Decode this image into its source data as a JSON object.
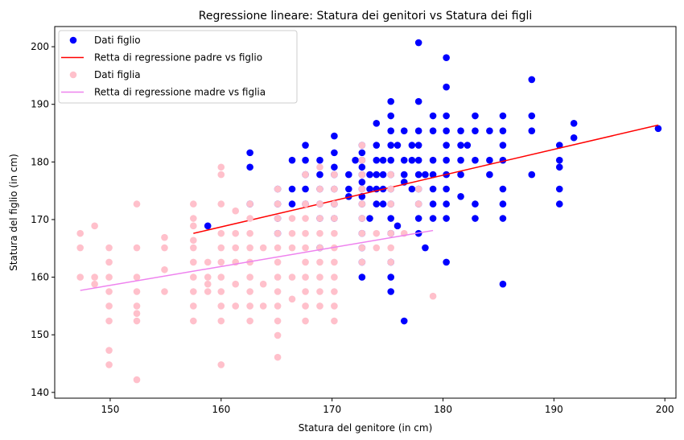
{
  "chart_data": {
    "type": "scatter",
    "title": "Regressione lineare: Statura dei genitori vs Statura dei figli",
    "xlabel": "Statura del genitore (in cm)",
    "ylabel": "Statura del figlio (in cm)",
    "xlim": [
      145,
      201
    ],
    "ylim": [
      139,
      203.5
    ],
    "xticks": [
      150,
      160,
      170,
      180,
      190,
      200
    ],
    "yticks": [
      140,
      150,
      160,
      170,
      180,
      190,
      200
    ],
    "grid": false,
    "legend_position": "top-left",
    "series": [
      {
        "name": "Dati figlio",
        "kind": "scatter",
        "color": "#0000ff",
        "points": [
          [
            158.8,
            168.9
          ],
          [
            162.6,
            181.6
          ],
          [
            162.6,
            179.1
          ],
          [
            162.6,
            172.7
          ],
          [
            165.1,
            175.3
          ],
          [
            165.1,
            172.7
          ],
          [
            165.1,
            170.2
          ],
          [
            165.1,
            167.6
          ],
          [
            166.4,
            180.3
          ],
          [
            166.4,
            175.3
          ],
          [
            166.4,
            172.7
          ],
          [
            167.6,
            182.9
          ],
          [
            167.6,
            180.3
          ],
          [
            167.6,
            177.8
          ],
          [
            167.6,
            175.3
          ],
          [
            167.6,
            172.7
          ],
          [
            168.9,
            180.3
          ],
          [
            168.9,
            177.8
          ],
          [
            168.9,
            175.3
          ],
          [
            168.9,
            172.7
          ],
          [
            168.9,
            170.2
          ],
          [
            168.9,
            165.1
          ],
          [
            170.2,
            184.5
          ],
          [
            170.2,
            181.6
          ],
          [
            170.2,
            179.1
          ],
          [
            170.2,
            177.8
          ],
          [
            170.2,
            175.3
          ],
          [
            170.2,
            172.7
          ],
          [
            170.2,
            170.2
          ],
          [
            171.5,
            177.8
          ],
          [
            171.5,
            175.3
          ],
          [
            171.5,
            174.0
          ],
          [
            172.1,
            180.3
          ],
          [
            172.7,
            182.9
          ],
          [
            172.7,
            181.6
          ],
          [
            172.7,
            180.3
          ],
          [
            172.7,
            179.1
          ],
          [
            172.7,
            177.8
          ],
          [
            172.7,
            176.5
          ],
          [
            172.7,
            175.3
          ],
          [
            172.7,
            174.0
          ],
          [
            172.7,
            172.7
          ],
          [
            172.7,
            170.2
          ],
          [
            172.7,
            167.6
          ],
          [
            172.7,
            165.1
          ],
          [
            172.7,
            162.6
          ],
          [
            172.7,
            160.0
          ],
          [
            173.4,
            177.8
          ],
          [
            173.4,
            175.3
          ],
          [
            173.4,
            170.2
          ],
          [
            174.0,
            186.7
          ],
          [
            174.0,
            182.9
          ],
          [
            174.0,
            180.3
          ],
          [
            174.0,
            177.8
          ],
          [
            174.0,
            175.3
          ],
          [
            174.0,
            172.7
          ],
          [
            174.6,
            180.3
          ],
          [
            174.6,
            177.8
          ],
          [
            174.6,
            175.3
          ],
          [
            174.6,
            172.7
          ],
          [
            175.3,
            190.5
          ],
          [
            175.3,
            188.0
          ],
          [
            175.3,
            185.4
          ],
          [
            175.3,
            182.9
          ],
          [
            175.3,
            180.3
          ],
          [
            175.3,
            177.8
          ],
          [
            175.3,
            175.3
          ],
          [
            175.3,
            172.7
          ],
          [
            175.3,
            170.2
          ],
          [
            175.3,
            167.6
          ],
          [
            175.3,
            162.6
          ],
          [
            175.3,
            160.0
          ],
          [
            175.3,
            157.5
          ],
          [
            175.9,
            182.9
          ],
          [
            175.9,
            168.9
          ],
          [
            176.5,
            185.4
          ],
          [
            176.5,
            180.3
          ],
          [
            176.5,
            177.8
          ],
          [
            176.5,
            176.5
          ],
          [
            176.5,
            152.4
          ],
          [
            177.2,
            182.9
          ],
          [
            177.2,
            180.3
          ],
          [
            177.2,
            175.3
          ],
          [
            177.8,
            200.7
          ],
          [
            177.8,
            190.5
          ],
          [
            177.8,
            185.4
          ],
          [
            177.8,
            182.9
          ],
          [
            177.8,
            180.3
          ],
          [
            177.8,
            177.8
          ],
          [
            177.8,
            175.3
          ],
          [
            177.8,
            172.7
          ],
          [
            177.8,
            170.2
          ],
          [
            177.8,
            167.6
          ],
          [
            178.4,
            177.8
          ],
          [
            178.4,
            165.1
          ],
          [
            179.1,
            188.0
          ],
          [
            179.1,
            185.4
          ],
          [
            179.1,
            180.3
          ],
          [
            179.1,
            177.8
          ],
          [
            179.1,
            175.3
          ],
          [
            179.1,
            172.7
          ],
          [
            179.1,
            170.2
          ],
          [
            180.3,
            198.1
          ],
          [
            180.3,
            193.0
          ],
          [
            180.3,
            188.0
          ],
          [
            180.3,
            185.4
          ],
          [
            180.3,
            182.9
          ],
          [
            180.3,
            180.3
          ],
          [
            180.3,
            177.8
          ],
          [
            180.3,
            175.3
          ],
          [
            180.3,
            172.7
          ],
          [
            180.3,
            170.2
          ],
          [
            180.3,
            162.6
          ],
          [
            181.6,
            185.4
          ],
          [
            181.6,
            182.9
          ],
          [
            181.6,
            180.3
          ],
          [
            181.6,
            177.8
          ],
          [
            181.6,
            174.0
          ],
          [
            182.2,
            182.9
          ],
          [
            182.9,
            188.0
          ],
          [
            182.9,
            185.4
          ],
          [
            182.9,
            180.3
          ],
          [
            182.9,
            172.7
          ],
          [
            182.9,
            170.2
          ],
          [
            184.2,
            185.4
          ],
          [
            184.2,
            180.3
          ],
          [
            184.2,
            177.8
          ],
          [
            185.4,
            188.0
          ],
          [
            185.4,
            185.4
          ],
          [
            185.4,
            182.9
          ],
          [
            185.4,
            180.3
          ],
          [
            185.4,
            175.3
          ],
          [
            185.4,
            172.7
          ],
          [
            185.4,
            170.2
          ],
          [
            185.4,
            158.8
          ],
          [
            188.0,
            194.3
          ],
          [
            188.0,
            188.0
          ],
          [
            188.0,
            185.4
          ],
          [
            188.0,
            177.8
          ],
          [
            190.5,
            182.9
          ],
          [
            190.5,
            180.3
          ],
          [
            190.5,
            179.1
          ],
          [
            190.5,
            175.3
          ],
          [
            190.5,
            172.7
          ],
          [
            191.8,
            186.7
          ],
          [
            191.8,
            184.2
          ],
          [
            199.4,
            185.8
          ]
        ]
      },
      {
        "name": "Retta di regressione padre vs figlio",
        "kind": "line",
        "color": "#ff0000",
        "x": [
          157.5,
          199.4
        ],
        "y": [
          167.6,
          186.4
        ]
      },
      {
        "name": "Dati figlia",
        "kind": "scatter",
        "color": "#ffc0cb",
        "points": [
          [
            147.3,
            167.6
          ],
          [
            147.3,
            165.1
          ],
          [
            147.3,
            160.0
          ],
          [
            148.6,
            168.9
          ],
          [
            148.6,
            160.0
          ],
          [
            148.6,
            158.8
          ],
          [
            149.9,
            165.1
          ],
          [
            149.9,
            162.6
          ],
          [
            149.9,
            160.0
          ],
          [
            149.9,
            157.5
          ],
          [
            149.9,
            155.0
          ],
          [
            149.9,
            152.4
          ],
          [
            149.9,
            147.3
          ],
          [
            149.9,
            144.8
          ],
          [
            152.4,
            172.7
          ],
          [
            152.4,
            165.1
          ],
          [
            152.4,
            160.0
          ],
          [
            152.4,
            157.5
          ],
          [
            152.4,
            155.0
          ],
          [
            152.4,
            153.7
          ],
          [
            152.4,
            152.4
          ],
          [
            152.4,
            142.2
          ],
          [
            154.9,
            166.9
          ],
          [
            154.9,
            165.1
          ],
          [
            154.9,
            161.3
          ],
          [
            154.9,
            157.5
          ],
          [
            157.5,
            172.7
          ],
          [
            157.5,
            170.2
          ],
          [
            157.5,
            168.9
          ],
          [
            157.5,
            166.4
          ],
          [
            157.5,
            165.1
          ],
          [
            157.5,
            162.6
          ],
          [
            157.5,
            160.0
          ],
          [
            157.5,
            157.5
          ],
          [
            157.5,
            155.0
          ],
          [
            157.5,
            152.4
          ],
          [
            158.8,
            162.6
          ],
          [
            158.8,
            160.0
          ],
          [
            158.8,
            158.8
          ],
          [
            158.8,
            157.5
          ],
          [
            160.0,
            179.1
          ],
          [
            160.0,
            177.8
          ],
          [
            160.0,
            172.7
          ],
          [
            160.0,
            167.6
          ],
          [
            160.0,
            165.1
          ],
          [
            160.0,
            162.6
          ],
          [
            160.0,
            160.0
          ],
          [
            160.0,
            157.5
          ],
          [
            160.0,
            155.0
          ],
          [
            160.0,
            152.4
          ],
          [
            160.0,
            144.8
          ],
          [
            161.3,
            171.5
          ],
          [
            161.3,
            167.6
          ],
          [
            161.3,
            165.1
          ],
          [
            161.3,
            162.6
          ],
          [
            161.3,
            158.8
          ],
          [
            161.3,
            155.0
          ],
          [
            162.6,
            172.7
          ],
          [
            162.6,
            170.2
          ],
          [
            162.6,
            167.6
          ],
          [
            162.6,
            165.1
          ],
          [
            162.6,
            162.6
          ],
          [
            162.6,
            160.0
          ],
          [
            162.6,
            157.5
          ],
          [
            162.6,
            155.0
          ],
          [
            162.6,
            152.4
          ],
          [
            163.8,
            165.1
          ],
          [
            163.8,
            158.8
          ],
          [
            163.8,
            155.0
          ],
          [
            165.1,
            175.3
          ],
          [
            165.1,
            172.7
          ],
          [
            165.1,
            170.2
          ],
          [
            165.1,
            167.6
          ],
          [
            165.1,
            165.1
          ],
          [
            165.1,
            162.6
          ],
          [
            165.1,
            160.0
          ],
          [
            165.1,
            157.5
          ],
          [
            165.1,
            155.0
          ],
          [
            165.1,
            152.4
          ],
          [
            165.1,
            149.9
          ],
          [
            165.1,
            146.1
          ],
          [
            166.4,
            170.2
          ],
          [
            166.4,
            167.6
          ],
          [
            166.4,
            165.1
          ],
          [
            166.4,
            160.0
          ],
          [
            166.4,
            156.2
          ],
          [
            167.6,
            177.8
          ],
          [
            167.6,
            172.7
          ],
          [
            167.6,
            170.2
          ],
          [
            167.6,
            167.6
          ],
          [
            167.6,
            165.1
          ],
          [
            167.6,
            162.6
          ],
          [
            167.6,
            160.0
          ],
          [
            167.6,
            157.5
          ],
          [
            167.6,
            155.0
          ],
          [
            167.6,
            152.4
          ],
          [
            168.9,
            179.1
          ],
          [
            168.9,
            175.3
          ],
          [
            168.9,
            172.7
          ],
          [
            168.9,
            170.2
          ],
          [
            168.9,
            167.6
          ],
          [
            168.9,
            165.1
          ],
          [
            168.9,
            162.6
          ],
          [
            168.9,
            160.0
          ],
          [
            168.9,
            157.5
          ],
          [
            168.9,
            155.0
          ],
          [
            170.2,
            177.8
          ],
          [
            170.2,
            175.3
          ],
          [
            170.2,
            172.7
          ],
          [
            170.2,
            170.2
          ],
          [
            170.2,
            167.6
          ],
          [
            170.2,
            165.1
          ],
          [
            170.2,
            162.6
          ],
          [
            170.2,
            160.0
          ],
          [
            170.2,
            157.5
          ],
          [
            170.2,
            155.0
          ],
          [
            170.2,
            152.4
          ],
          [
            172.7,
            182.9
          ],
          [
            172.7,
            180.3
          ],
          [
            172.7,
            177.8
          ],
          [
            172.7,
            175.3
          ],
          [
            172.7,
            172.7
          ],
          [
            172.7,
            170.2
          ],
          [
            172.7,
            167.6
          ],
          [
            172.7,
            165.1
          ],
          [
            172.7,
            162.6
          ],
          [
            174.0,
            167.6
          ],
          [
            174.0,
            165.1
          ],
          [
            175.3,
            177.8
          ],
          [
            175.3,
            175.3
          ],
          [
            175.3,
            172.7
          ],
          [
            175.3,
            167.6
          ],
          [
            175.3,
            165.1
          ],
          [
            175.3,
            162.6
          ],
          [
            176.5,
            167.6
          ],
          [
            177.8,
            175.3
          ],
          [
            177.8,
            172.7
          ],
          [
            179.1,
            156.7
          ]
        ]
      },
      {
        "name": "Retta di regressione madre vs figlia",
        "kind": "line",
        "color": "#ee82ee",
        "x": [
          147.3,
          179.1
        ],
        "y": [
          157.7,
          168.1
        ]
      }
    ]
  }
}
